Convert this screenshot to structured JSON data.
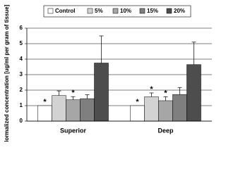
{
  "chart_data": {
    "type": "bar",
    "y_label": "Normalized concentration [ug/ml per gram of tissue]",
    "categories": [
      "Superior",
      "Deep"
    ],
    "series": [
      {
        "name": "Control",
        "color": "#ffffff",
        "values": [
          1.0,
          1.0
        ],
        "errors": [
          null,
          null
        ],
        "markers": [
          "*",
          "*"
        ]
      },
      {
        "name": "5%",
        "color": "#d2d2d2",
        "values": [
          1.65,
          1.57
        ],
        "errors": [
          0.3,
          0.25
        ],
        "markers": [
          null,
          "*"
        ]
      },
      {
        "name": "10%",
        "color": "#a6a6a6",
        "values": [
          1.38,
          1.32
        ],
        "errors": [
          0.2,
          0.25
        ],
        "markers": [
          "*",
          "*"
        ]
      },
      {
        "name": "15%",
        "color": "#7f7f7f",
        "values": [
          1.45,
          1.72
        ],
        "errors": [
          0.25,
          0.45
        ],
        "markers": [
          null,
          null
        ]
      },
      {
        "name": "20%",
        "color": "#4d4d4d",
        "values": [
          3.75,
          3.65
        ],
        "errors": [
          1.75,
          1.45
        ],
        "markers": [
          null,
          null
        ]
      }
    ],
    "ylim": [
      0,
      6
    ],
    "yticks": [
      0,
      1,
      2,
      3,
      4,
      5,
      6
    ],
    "grid": true,
    "legend": "top"
  }
}
